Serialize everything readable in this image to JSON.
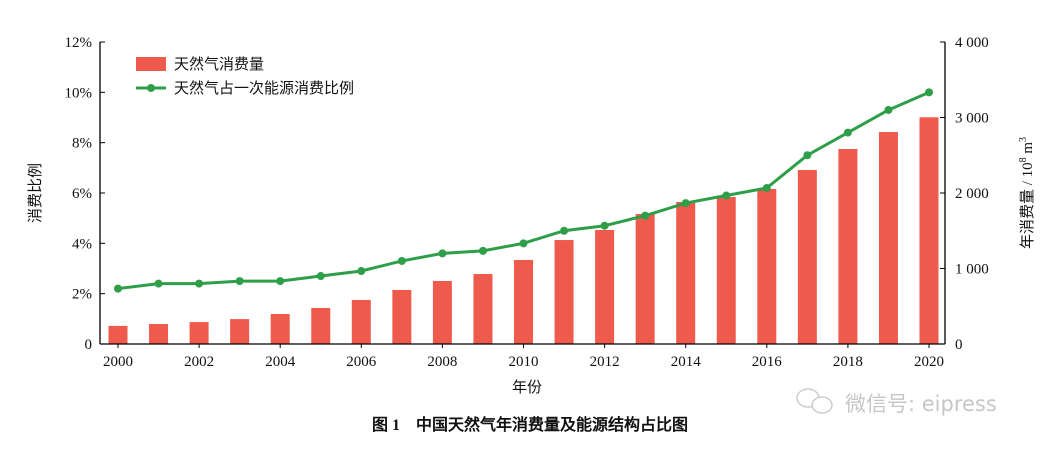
{
  "chart_data": {
    "type": "bar+line",
    "title": "图 1　中国天然气年消费量及能源结构占比图",
    "xlabel": "年份",
    "ylabel_left": "消费比例",
    "ylabel_right": "年消费量 / 10",
    "ylabel_right_sup1": "8",
    "ylabel_right_unit": " m",
    "ylabel_right_sup2": "3",
    "ylim_left": [
      0,
      12
    ],
    "ylim_right": [
      0,
      4000
    ],
    "left_ticks": [
      "0",
      "2%",
      "4%",
      "6%",
      "8%",
      "10%",
      "12%"
    ],
    "left_tick_values": [
      0,
      2,
      4,
      6,
      8,
      10,
      12
    ],
    "right_ticks": [
      "0",
      "1 000",
      "2 000",
      "3 000",
      "4 000"
    ],
    "right_tick_values": [
      0,
      1000,
      2000,
      3000,
      4000
    ],
    "x_tick_labels": [
      "2000",
      "2002",
      "2004",
      "2006",
      "2008",
      "2010",
      "2012",
      "2014",
      "2016",
      "2018",
      "2020"
    ],
    "x": [
      2000,
      2001,
      2002,
      2003,
      2004,
      2005,
      2006,
      2007,
      2008,
      2009,
      2010,
      2011,
      2012,
      2013,
      2014,
      2015,
      2016,
      2017,
      2018,
      2019,
      2020
    ],
    "legend_position": "top-left",
    "grid": false,
    "series": [
      {
        "name": "天然气消费量",
        "type": "bar",
        "axis": "right",
        "color": "#EE5A4C",
        "values": [
          240,
          265,
          290,
          330,
          397,
          477,
          583,
          715,
          835,
          927,
          1113,
          1377,
          1510,
          1722,
          1881,
          1947,
          2053,
          2305,
          2583,
          2808,
          3003
        ]
      },
      {
        "name": "天然气占一次能源消费比例",
        "type": "line",
        "axis": "left",
        "color": "#2E9E48",
        "values": [
          2.2,
          2.4,
          2.4,
          2.5,
          2.5,
          2.7,
          2.9,
          3.3,
          3.6,
          3.7,
          4.0,
          4.5,
          4.7,
          5.1,
          5.6,
          5.9,
          6.2,
          7.5,
          8.4,
          9.3,
          10.0
        ]
      }
    ]
  },
  "watermark": {
    "text": "微信号: eipress",
    "icon": "wechat-icon"
  }
}
